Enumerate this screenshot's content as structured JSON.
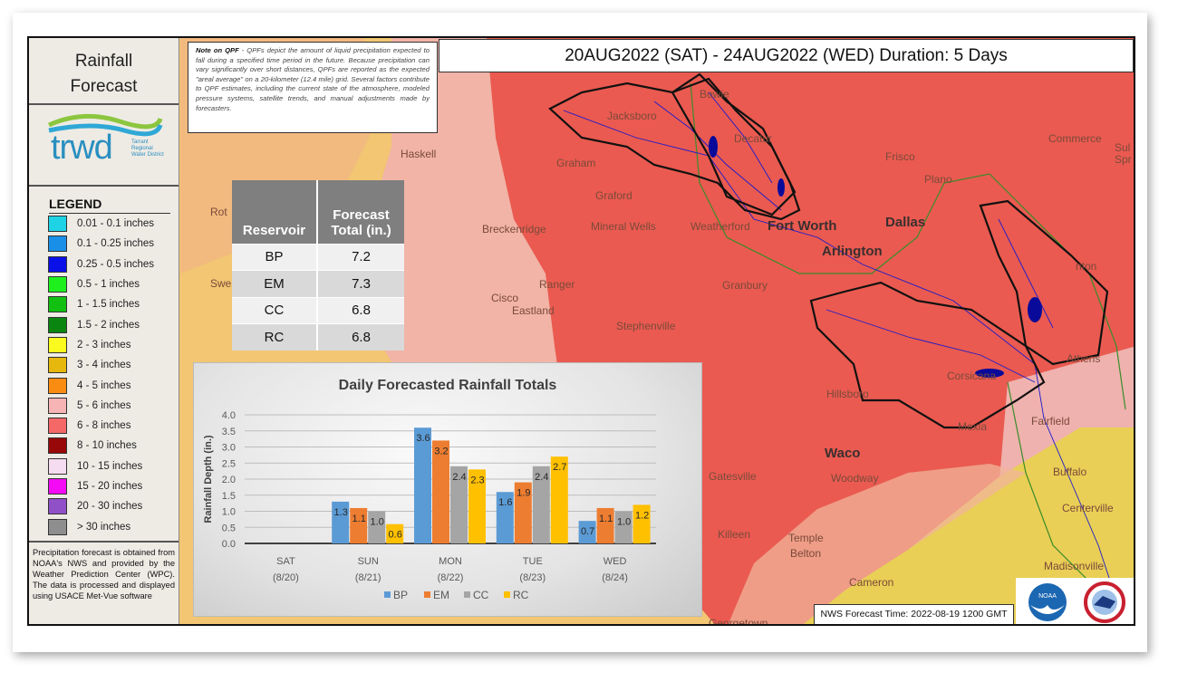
{
  "panel": {
    "title_line1": "Rainfall",
    "title_line2": "Forecast",
    "logo": {
      "text": "trwd",
      "subtext": "Tarrant Regional Water District"
    },
    "legend_title": "LEGEND",
    "legend": [
      {
        "label": "0.01 - 0.1 inches",
        "color": "#1fd3e6"
      },
      {
        "label": "0.1 - 0.25 inches",
        "color": "#1a8fe8"
      },
      {
        "label": "0.25 - 0.5 inches",
        "color": "#0a10e8"
      },
      {
        "label": "0.5 - 1 inches",
        "color": "#1ef01e"
      },
      {
        "label": "1 - 1.5 inches",
        "color": "#12c012"
      },
      {
        "label": "1.5 - 2 inches",
        "color": "#0a850f"
      },
      {
        "label": "2 - 3 inches",
        "color": "#fafa1e"
      },
      {
        "label": "3 - 4 inches",
        "color": "#e6b80e"
      },
      {
        "label": "4 - 5 inches",
        "color": "#fb8c12"
      },
      {
        "label": "5 - 6 inches",
        "color": "#f6b4b4"
      },
      {
        "label": "6 - 8 inches",
        "color": "#f46868"
      },
      {
        "label": "8 - 10 inches",
        "color": "#980808"
      },
      {
        "label": "10 - 15 inches",
        "color": "#f6dcf0"
      },
      {
        "label": "15 - 20 inches",
        "color": "#f40af4"
      },
      {
        "label": "20 - 30 inches",
        "color": "#9050c8"
      },
      {
        "label": "> 30 inches",
        "color": "#8e8e8e"
      }
    ],
    "footer": "Precipitation forecast is obtained from NOAA's NWS and provided by the Weather Prediction Center (WPC). The data is processed and displayed using USACE Met-Vue software"
  },
  "note": {
    "heading": "Note on QPF",
    "body": " - QPFs depict the amount of liquid precipitation expected to fall during a specified time period in the future. Because precipitation can vary significantly over short distances, QPFs are reported as the expected \"areal average\" on a 20-kilometer (12.4 mile) grid. Several factors contribute to QPF estimates, including the current state of the atmosphere, modeled pressure systems, satellite trends, and manual adjustments made by forecasters."
  },
  "header": {
    "title": "20AUG2022 (SAT) - 24AUG2022 (WED) Duration: 5 Days"
  },
  "table": {
    "headers": [
      "Reservoir",
      "Forecast Total (in.)"
    ],
    "rows": [
      [
        "BP",
        "7.2"
      ],
      [
        "EM",
        "7.3"
      ],
      [
        "CC",
        "6.8"
      ],
      [
        "RC",
        "6.8"
      ]
    ]
  },
  "chart_data": {
    "type": "bar",
    "title": "Daily Forecasted Rainfall Totals",
    "xlabel": "",
    "ylabel": "Rainfall Depth (in.)",
    "ylim": [
      0,
      4.0
    ],
    "yticks": [
      "0.0",
      "0.5",
      "1.0",
      "1.5",
      "2.0",
      "2.5",
      "3.0",
      "3.5",
      "4.0"
    ],
    "grid": true,
    "legend_position": "bottom",
    "categories": [
      [
        "SAT",
        "(8/20)"
      ],
      [
        "SUN",
        "(8/21)"
      ],
      [
        "MON",
        "(8/22)"
      ],
      [
        "TUE",
        "(8/23)"
      ],
      [
        "WED",
        "(8/24)"
      ]
    ],
    "series": [
      {
        "name": "BP",
        "color": "#5b9bd5",
        "values": [
          null,
          1.3,
          3.6,
          1.6,
          0.7
        ]
      },
      {
        "name": "EM",
        "color": "#ed7d31",
        "values": [
          null,
          1.1,
          3.2,
          1.9,
          1.1
        ]
      },
      {
        "name": "CC",
        "color": "#a5a5a5",
        "values": [
          null,
          1.0,
          2.4,
          2.4,
          1.0
        ]
      },
      {
        "name": "RC",
        "color": "#ffc000",
        "values": [
          null,
          0.6,
          2.3,
          2.7,
          1.2
        ]
      }
    ]
  },
  "map": {
    "cities": [
      {
        "name": "Haskell"
      },
      {
        "name": "Graham"
      },
      {
        "name": "Jacksboro"
      },
      {
        "name": "Bowie"
      },
      {
        "name": "Decatur"
      },
      {
        "name": "Frisco"
      },
      {
        "name": "Plano"
      },
      {
        "name": "Commerce"
      },
      {
        "name": "Sul"
      },
      {
        "name": "Spr"
      },
      {
        "name": "Graford"
      },
      {
        "name": "Mineral Wells"
      },
      {
        "name": "Weatherford"
      },
      {
        "name": "Fort Worth",
        "big": true
      },
      {
        "name": "Dallas",
        "big": true
      },
      {
        "name": "Arlington",
        "big": true
      },
      {
        "name": "Breckenridge"
      },
      {
        "name": "Ranger"
      },
      {
        "name": "Cisco"
      },
      {
        "name": "Eastland"
      },
      {
        "name": "Granbury"
      },
      {
        "name": "Stephenville"
      },
      {
        "name": "Hillsboro"
      },
      {
        "name": "Corsicana"
      },
      {
        "name": "Athens"
      },
      {
        "name": "Fairfield"
      },
      {
        "name": "Waco",
        "big": true
      },
      {
        "name": "Mexia"
      },
      {
        "name": "Gatesville"
      },
      {
        "name": "Woodway"
      },
      {
        "name": "Buffalo"
      },
      {
        "name": "Centerville"
      },
      {
        "name": "Killeen"
      },
      {
        "name": "Temple"
      },
      {
        "name": "Belton"
      },
      {
        "name": "Cameron"
      },
      {
        "name": "Madisonville"
      },
      {
        "name": "Georgetown"
      },
      {
        "name": "nton"
      },
      {
        "name": "Rot"
      },
      {
        "name": "Swe"
      }
    ]
  },
  "footer": {
    "forecast_time": "NWS Forecast Time: 2022-08-19 1200 GMT"
  },
  "logos": [
    "NOAA",
    "National Weather Service"
  ]
}
